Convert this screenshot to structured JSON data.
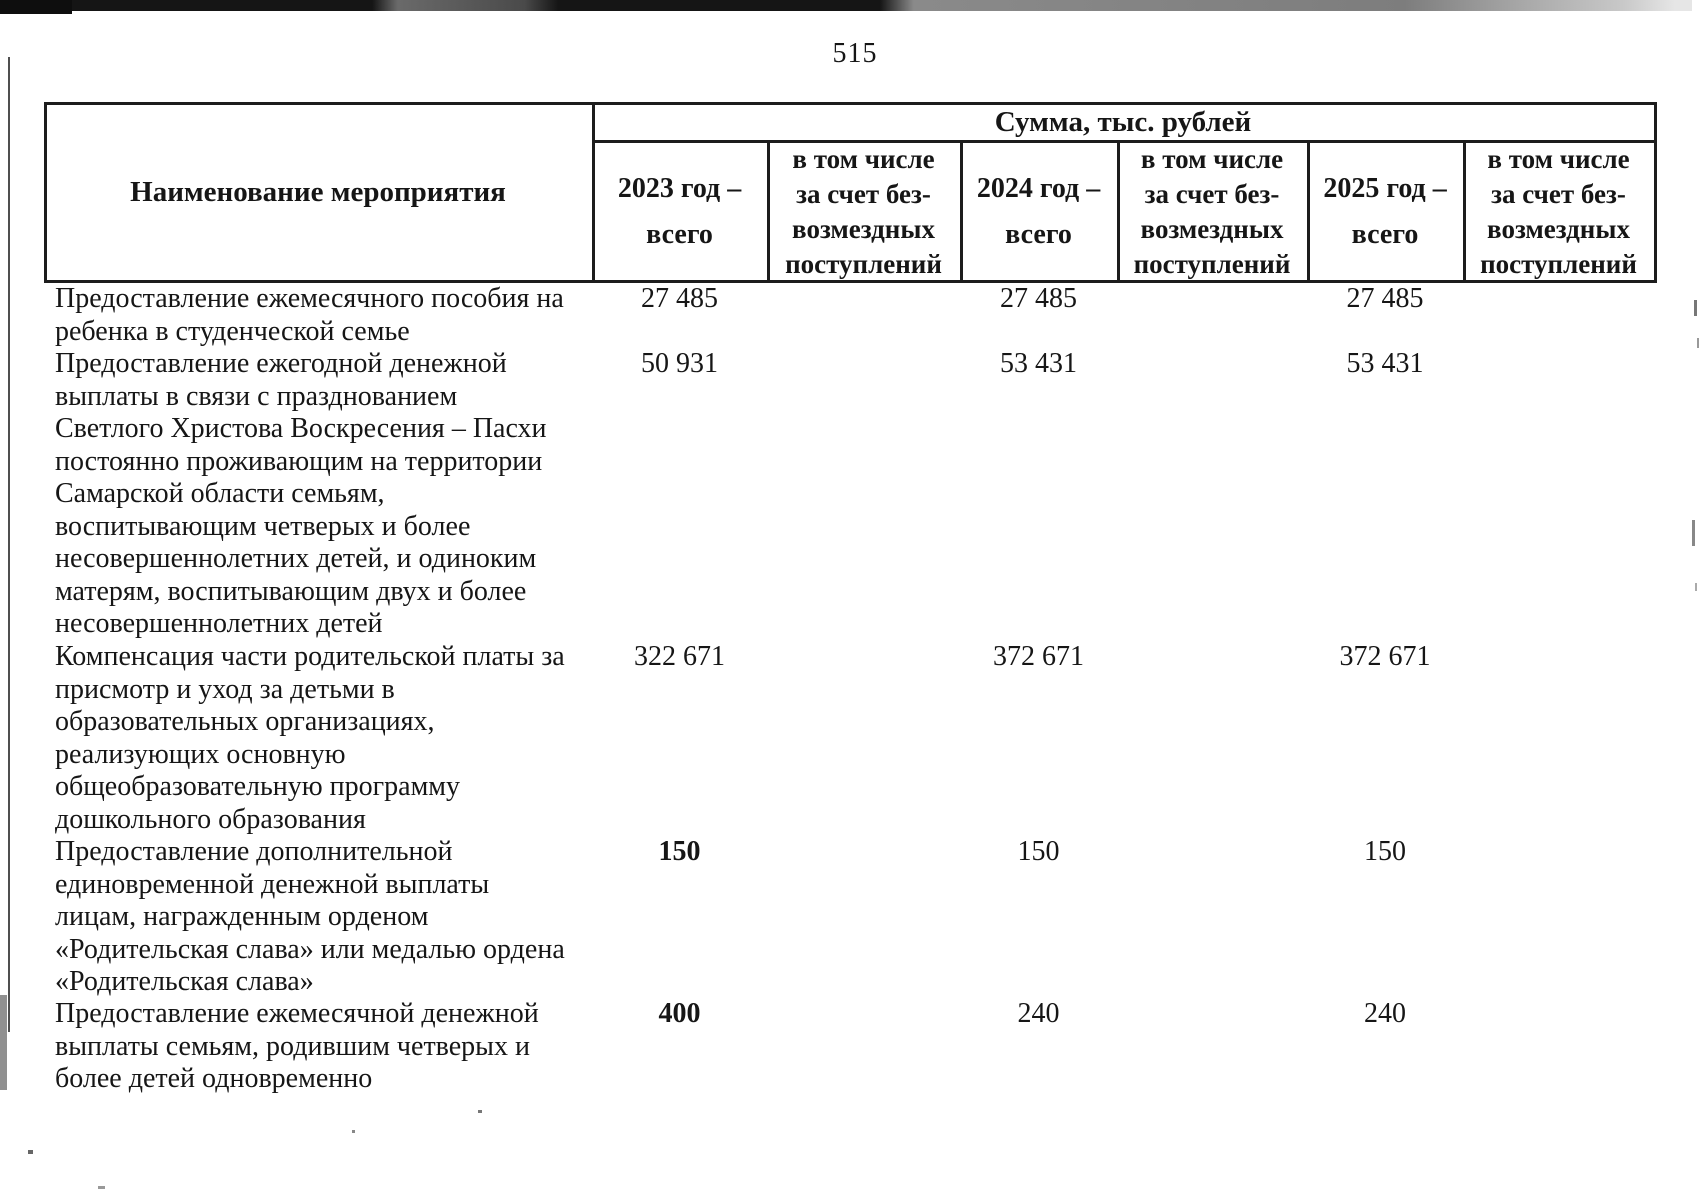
{
  "page": {
    "number": "515"
  },
  "table": {
    "header": {
      "name_col": "Наименование мероприятия",
      "sum_group": "Сумма, тыс. рублей",
      "year_cols": [
        {
          "year_label": "2023 год –",
          "total_label": "всего",
          "incl_lines": [
            "в том числе",
            "за счет без-",
            "возмездных",
            "поступлений"
          ]
        },
        {
          "year_label": "2024 год –",
          "total_label": "всего",
          "incl_lines": [
            "в том числе",
            "за счет без-",
            "возмездных",
            "поступлений"
          ]
        },
        {
          "year_label": "2025 год –",
          "total_label": "всего",
          "incl_lines": [
            "в том числе",
            "за счет без-",
            "возмездных",
            "поступлений"
          ]
        }
      ]
    },
    "rows": [
      {
        "name_lines": [
          "Предоставление ежемесячного пособия на",
          "ребенка в студенческой семье"
        ],
        "values": [
          "27 485",
          "",
          "27 485",
          "",
          "27 485",
          ""
        ]
      },
      {
        "name_lines": [
          "Предоставление ежегодной денежной",
          "выплаты в связи с празднованием",
          "Светлого Христова Воскресения – Пасхи",
          "постоянно проживающим на территории",
          "Самарской области семьям,",
          "воспитывающим четверых и более",
          "несовершеннолетних детей, и одиноким",
          "матерям, воспитывающим двух и более",
          "несовершеннолетних детей"
        ],
        "values": [
          "50 931",
          "",
          "53 431",
          "",
          "53 431",
          ""
        ]
      },
      {
        "name_lines": [
          "Компенсация части родительской платы за",
          "присмотр и уход за детьми в",
          "образовательных организациях,",
          "реализующих основную",
          "общеобразовательную программу",
          "дошкольного образования"
        ],
        "values": [
          "322 671",
          "",
          "372 671",
          "",
          "372 671",
          ""
        ]
      },
      {
        "name_lines": [
          "Предоставление дополнительной",
          "единовременной денежной выплаты",
          "лицам, награжденным орденом",
          "«Родительская слава» или медалью ордена",
          "«Родительская слава»"
        ],
        "values": [
          "150",
          "",
          "150",
          "",
          "150",
          ""
        ],
        "bold": [
          true,
          false,
          false,
          false,
          false,
          false
        ]
      },
      {
        "name_lines": [
          "Предоставление ежемесячной денежной",
          "выплаты семьям, родившим четверых и",
          "более детей одновременно"
        ],
        "values": [
          "400",
          "",
          "240",
          "",
          "240",
          ""
        ],
        "bold": [
          true,
          false,
          false,
          false,
          false,
          false
        ]
      }
    ]
  }
}
